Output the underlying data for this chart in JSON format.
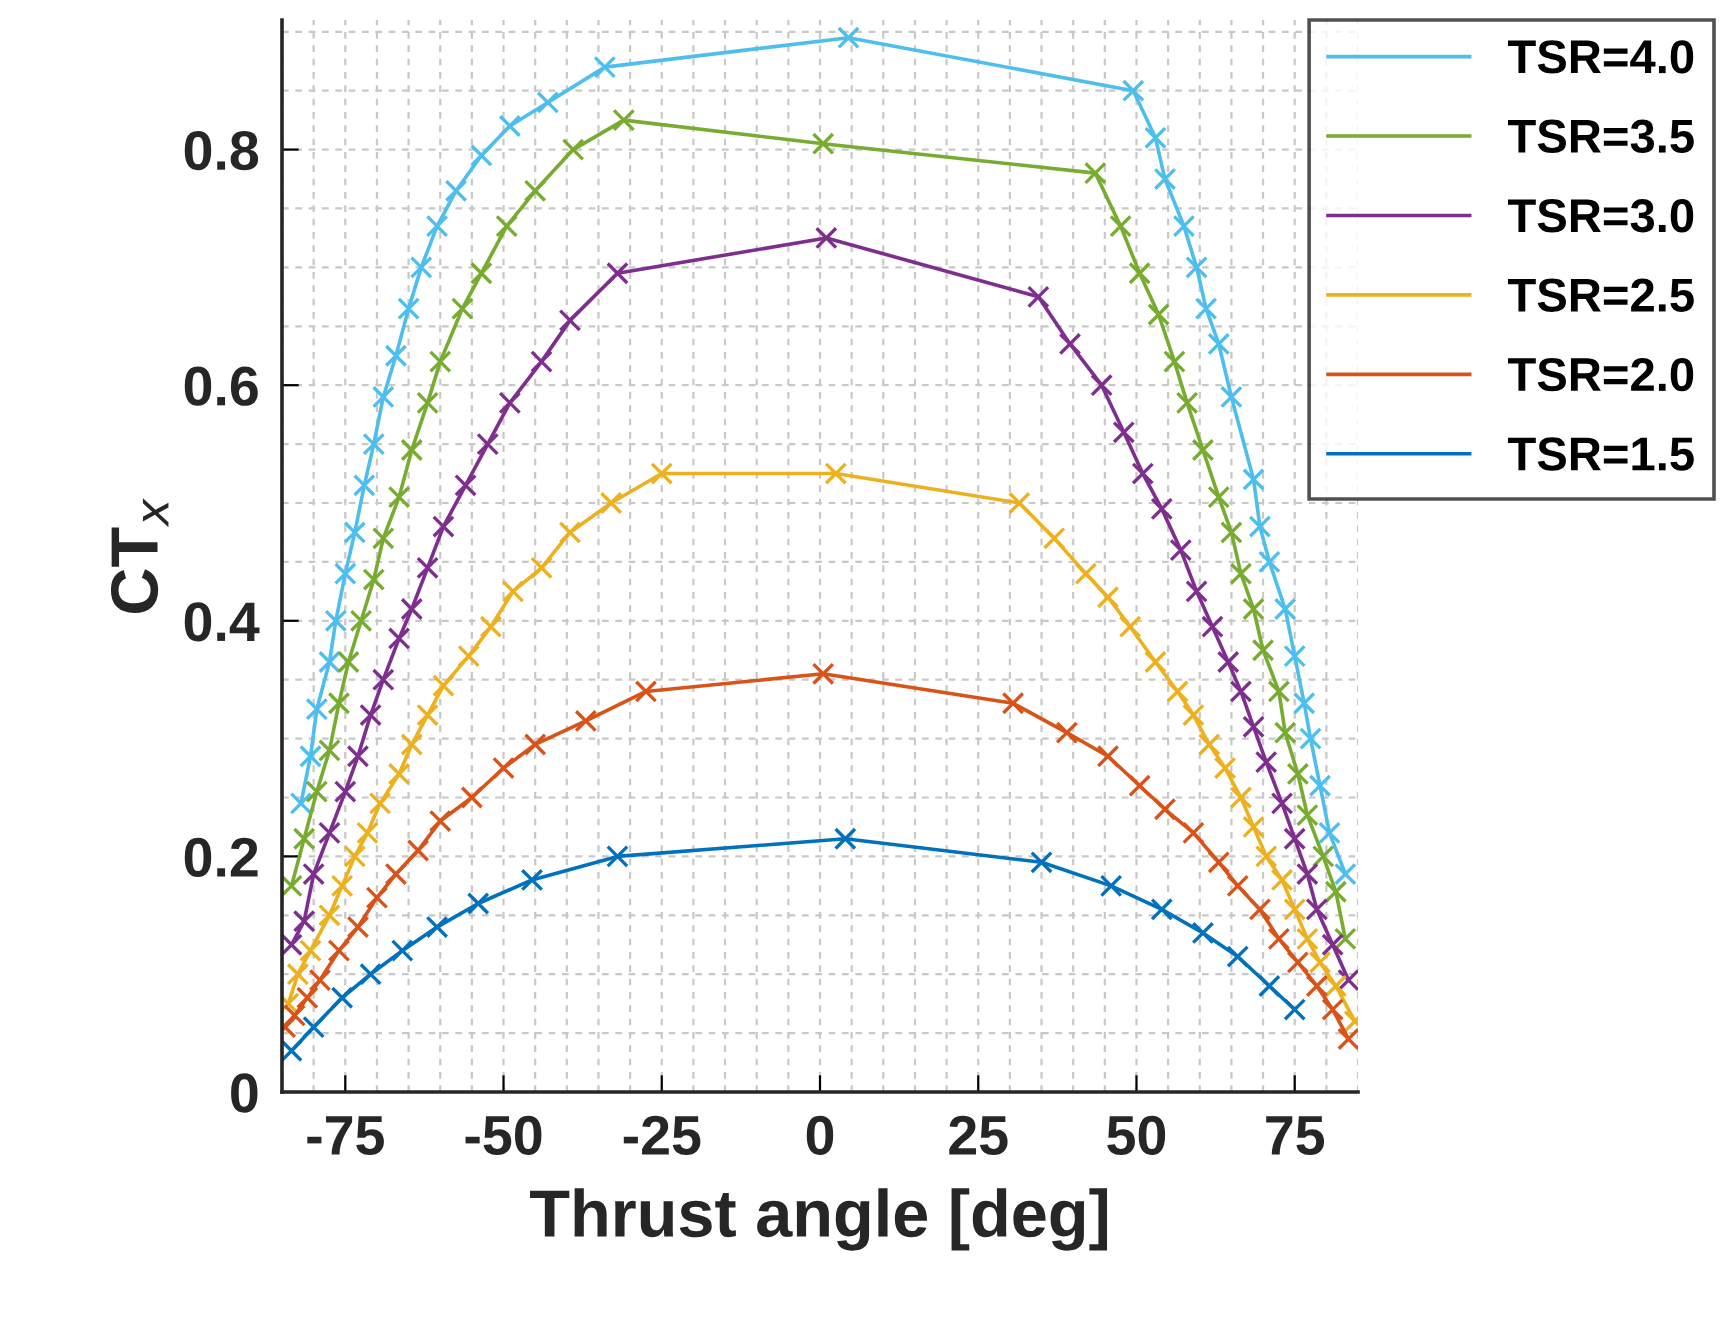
{
  "chart_data": {
    "type": "line",
    "xlabel": "Thrust angle [deg]",
    "ylabel": "CT$_{x}$",
    "xlim": [
      -85,
      85
    ],
    "xticks": [
      -75,
      -50,
      -25,
      0,
      25,
      50,
      75
    ],
    "ylim": [
      0,
      0.91
    ],
    "yticks": [
      0,
      0.2,
      0.4,
      0.6,
      0.8
    ],
    "grid": true,
    "legend": "top right",
    "marker": "cross",
    "line_style": "solid",
    "series": [
      {
        "name": "TSR=4.0",
        "color": "#4dbeee",
        "x": [
          -82,
          -80.5,
          -79.5,
          -77.5,
          -76.5,
          -75,
          -73.5,
          -72,
          -70.5,
          -69,
          -67,
          -65,
          -63,
          -60.5,
          -57.5,
          -53.5,
          -49,
          -43,
          -34,
          4.5,
          49.5,
          53,
          54.5,
          57.5,
          59.5,
          61,
          63,
          65,
          68.5,
          69.5,
          71,
          73.5,
          75,
          76.5,
          77.5,
          79,
          80.5,
          83
        ],
        "values": [
          0.245,
          0.285,
          0.325,
          0.365,
          0.4,
          0.44,
          0.475,
          0.515,
          0.55,
          0.59,
          0.625,
          0.665,
          0.7,
          0.735,
          0.765,
          0.795,
          0.82,
          0.84,
          0.87,
          0.895,
          0.85,
          0.81,
          0.775,
          0.735,
          0.7,
          0.665,
          0.635,
          0.59,
          0.52,
          0.48,
          0.45,
          0.41,
          0.37,
          0.33,
          0.3,
          0.26,
          0.22,
          0.185
        ]
      },
      {
        "name": "TSR=3.5",
        "color": "#77ac30",
        "x": [
          -83.5,
          -81.5,
          -79.5,
          -77.5,
          -76,
          -74.5,
          -72.5,
          -70.5,
          -69,
          -66.5,
          -64.5,
          -62,
          -60,
          -56.5,
          -53.5,
          -49.5,
          -45,
          -39,
          -31,
          0.5,
          43.5,
          47.5,
          50.5,
          53.5,
          56,
          58,
          60.5,
          63,
          65,
          66.5,
          68.5,
          70,
          72.5,
          73.5,
          75.5,
          77,
          79.5,
          81.5,
          83
        ],
        "values": [
          0.175,
          0.215,
          0.255,
          0.29,
          0.33,
          0.365,
          0.4,
          0.435,
          0.47,
          0.505,
          0.545,
          0.585,
          0.62,
          0.665,
          0.695,
          0.735,
          0.765,
          0.8,
          0.825,
          0.805,
          0.78,
          0.735,
          0.695,
          0.66,
          0.62,
          0.585,
          0.545,
          0.505,
          0.475,
          0.44,
          0.41,
          0.375,
          0.34,
          0.305,
          0.27,
          0.235,
          0.2,
          0.17,
          0.13
        ]
      },
      {
        "name": "TSR=3.0",
        "color": "#7e2f8e",
        "x": [
          -83.5,
          -81.5,
          -80,
          -77.5,
          -75,
          -73,
          -71,
          -69,
          -66.5,
          -64.5,
          -62,
          -59.5,
          -56,
          -52.5,
          -49,
          -44,
          -39.5,
          -32,
          1,
          34.5,
          39.5,
          44.5,
          48,
          51,
          54,
          57,
          59.5,
          62,
          64.5,
          66.5,
          68.5,
          70.5,
          73,
          75,
          77,
          78.5,
          81,
          83.5
        ],
        "values": [
          0.125,
          0.145,
          0.185,
          0.22,
          0.255,
          0.285,
          0.32,
          0.35,
          0.385,
          0.41,
          0.445,
          0.48,
          0.515,
          0.55,
          0.585,
          0.62,
          0.655,
          0.695,
          0.725,
          0.675,
          0.635,
          0.6,
          0.56,
          0.525,
          0.495,
          0.46,
          0.425,
          0.395,
          0.365,
          0.34,
          0.31,
          0.28,
          0.245,
          0.215,
          0.185,
          0.155,
          0.125,
          0.095
        ]
      },
      {
        "name": "TSR=2.5",
        "color": "#edb120",
        "x": [
          -84,
          -82.5,
          -80.5,
          -77.5,
          -75.5,
          -73.5,
          -71.5,
          -69.5,
          -66.5,
          -64.5,
          -62,
          -59.5,
          -55.5,
          -52,
          -48.5,
          -44,
          -39.5,
          -33,
          -25,
          2.5,
          31.5,
          37,
          42,
          45.5,
          49,
          53,
          56.5,
          59,
          61.5,
          64,
          66.5,
          68.5,
          70.5,
          73,
          75,
          77,
          79,
          81.5,
          84.5
        ],
        "values": [
          0.075,
          0.1,
          0.12,
          0.15,
          0.175,
          0.2,
          0.22,
          0.245,
          0.27,
          0.295,
          0.32,
          0.345,
          0.37,
          0.395,
          0.425,
          0.445,
          0.475,
          0.5,
          0.525,
          0.525,
          0.5,
          0.47,
          0.44,
          0.42,
          0.395,
          0.365,
          0.34,
          0.32,
          0.295,
          0.275,
          0.25,
          0.225,
          0.2,
          0.18,
          0.155,
          0.13,
          0.11,
          0.09,
          0.06
        ]
      },
      {
        "name": "TSR=2.0",
        "color": "#d95319",
        "x": [
          -84.5,
          -83,
          -81,
          -79,
          -76,
          -73,
          -70,
          -67,
          -63.5,
          -60,
          -55,
          -50,
          -45,
          -37,
          -27.5,
          0.5,
          30.5,
          39,
          45.5,
          50.5,
          54.5,
          59,
          63,
          66,
          69.5,
          72.5,
          75.5,
          78.5,
          81,
          83.5
        ],
        "values": [
          0.055,
          0.065,
          0.08,
          0.095,
          0.12,
          0.14,
          0.165,
          0.185,
          0.205,
          0.23,
          0.25,
          0.275,
          0.295,
          0.315,
          0.34,
          0.355,
          0.33,
          0.305,
          0.285,
          0.26,
          0.24,
          0.22,
          0.195,
          0.175,
          0.155,
          0.13,
          0.11,
          0.09,
          0.07,
          0.045
        ]
      },
      {
        "name": "TSR=1.5",
        "color": "#0072bd",
        "x": [
          -83.5,
          -80,
          -75.5,
          -71,
          -66,
          -60.5,
          -54,
          -45.5,
          -32,
          4,
          35,
          46,
          54,
          60.5,
          66,
          71,
          75
        ],
        "values": [
          0.035,
          0.055,
          0.08,
          0.1,
          0.12,
          0.14,
          0.16,
          0.18,
          0.2,
          0.215,
          0.195,
          0.175,
          0.155,
          0.135,
          0.115,
          0.09,
          0.07
        ]
      }
    ]
  }
}
